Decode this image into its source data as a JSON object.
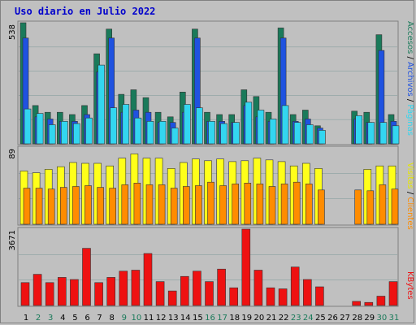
{
  "title": "Uso diario en Julio 2022",
  "colors": {
    "accesos": "#1a7a5a",
    "paginas": "#33d6f0",
    "archivos": "#1f52e0",
    "visitas": "#ffff1a",
    "clientes": "#ff8c00",
    "kbytes": "#ee1111"
  },
  "chart_data": [
    {
      "type": "bar",
      "title": "Uso diario en Julio 2022",
      "categories": [
        "1",
        "2",
        "3",
        "4",
        "5",
        "6",
        "7",
        "8",
        "9",
        "10",
        "11",
        "12",
        "13",
        "14",
        "15",
        "16",
        "17",
        "18",
        "19",
        "20",
        "21",
        "22",
        "23",
        "24",
        "25",
        "26",
        "27",
        "28",
        "29",
        "30",
        "31"
      ],
      "weekend_days": [
        "2",
        "3",
        "9",
        "10",
        "16",
        "17",
        "23",
        "24",
        "30",
        "31"
      ],
      "y_max_label": "538",
      "ylim": [
        0,
        538
      ],
      "series": [
        {
          "name": "Accesos",
          "values": [
            538,
            170,
            140,
            140,
            130,
            170,
            400,
            510,
            220,
            240,
            205,
            140,
            120,
            230,
            510,
            140,
            130,
            130,
            240,
            210,
            140,
            515,
            130,
            150,
            80,
            0,
            0,
            145,
            140,
            485,
            130
          ]
        },
        {
          "name": "Archivos",
          "values": [
            470,
            120,
            110,
            100,
            100,
            130,
            320,
            470,
            140,
            150,
            140,
            95,
            95,
            140,
            470,
            100,
            100,
            95,
            170,
            120,
            100,
            470,
            100,
            110,
            70,
            0,
            0,
            110,
            95,
            415,
            100
          ]
        },
        {
          "name": "Páginas",
          "values": [
            155,
            135,
            85,
            100,
            90,
            115,
            350,
            160,
            175,
            115,
            100,
            100,
            70,
            175,
            160,
            100,
            90,
            95,
            185,
            150,
            110,
            170,
            95,
            85,
            60,
            0,
            0,
            125,
            95,
            95,
            80
          ]
        }
      ]
    },
    {
      "type": "bar",
      "y_max_label": "89",
      "ylim": [
        0,
        89
      ],
      "series": [
        {
          "name": "Visitas",
          "values": [
            62,
            60,
            64,
            67,
            72,
            71,
            71,
            68,
            77,
            82,
            77,
            77,
            65,
            72,
            76,
            74,
            76,
            73,
            74,
            77,
            75,
            73,
            68,
            71,
            65,
            0,
            0,
            0,
            64,
            68,
            68
          ]
        },
        {
          "name": "Clientes",
          "values": [
            42,
            42,
            41,
            43,
            44,
            45,
            43,
            42,
            46,
            48,
            46,
            46,
            42,
            44,
            45,
            49,
            45,
            47,
            48,
            47,
            44,
            47,
            49,
            47,
            40,
            0,
            0,
            40,
            39,
            46,
            41
          ]
        }
      ]
    },
    {
      "type": "bar",
      "y_max_label": "3671",
      "ylim": [
        0,
        3671
      ],
      "series": [
        {
          "name": "KBytes",
          "values": [
            1100,
            1500,
            1100,
            1350,
            1250,
            2750,
            1100,
            1350,
            1650,
            1700,
            2500,
            1150,
            700,
            1400,
            1650,
            1150,
            1750,
            850,
            3671,
            1700,
            850,
            800,
            1850,
            1250,
            900,
            0,
            0,
            200,
            150,
            450,
            1150
          ]
        }
      ]
    }
  ],
  "legend": {
    "accesos": "Accesos",
    "archivos": "Archivos",
    "paginas": "Páginas",
    "visitas": "Visitas",
    "clientes": "Clientes",
    "kbytes": "KBytes",
    "separator": " / "
  }
}
